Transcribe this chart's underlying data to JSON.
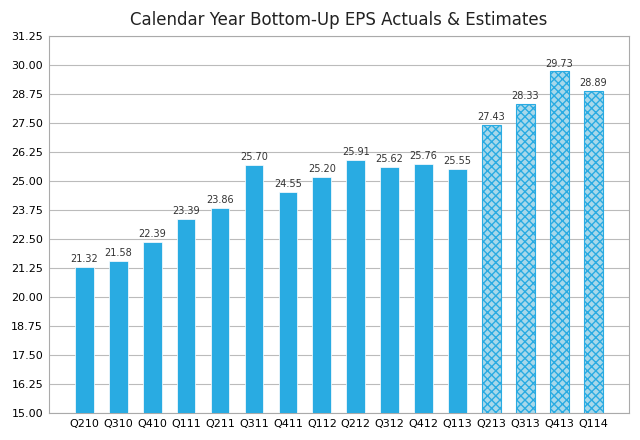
{
  "title": "Calendar Year Bottom-Up EPS Actuals & Estimates",
  "categories": [
    "Q210",
    "Q310",
    "Q410",
    "Q111",
    "Q211",
    "Q311",
    "Q411",
    "Q112",
    "Q212",
    "Q312",
    "Q412",
    "Q113",
    "Q213",
    "Q313",
    "Q413",
    "Q114"
  ],
  "values": [
    21.32,
    21.58,
    22.39,
    23.39,
    23.86,
    25.7,
    24.55,
    25.2,
    25.91,
    25.62,
    25.76,
    25.55,
    27.43,
    28.33,
    29.73,
    28.89
  ],
  "is_estimate": [
    false,
    false,
    false,
    false,
    false,
    false,
    false,
    false,
    false,
    false,
    false,
    false,
    true,
    true,
    true,
    true
  ],
  "solid_color": "#29ABE2",
  "hatch_facecolor": "#A8D8EA",
  "hatch_edgecolor": "#29ABE2",
  "ylim_min": 15.0,
  "ylim_max": 31.25,
  "yticks": [
    15.0,
    16.25,
    17.5,
    18.75,
    20.0,
    21.25,
    22.5,
    23.75,
    25.0,
    26.25,
    27.5,
    28.75,
    30.0,
    31.25
  ],
  "background_color": "#FFFFFF",
  "plot_bg_color": "#FFFFFF",
  "grid_color": "#BBBBBB",
  "border_color": "#AAAAAA",
  "title_fontsize": 12,
  "label_fontsize": 7,
  "tick_fontsize": 8,
  "bar_width": 0.55
}
